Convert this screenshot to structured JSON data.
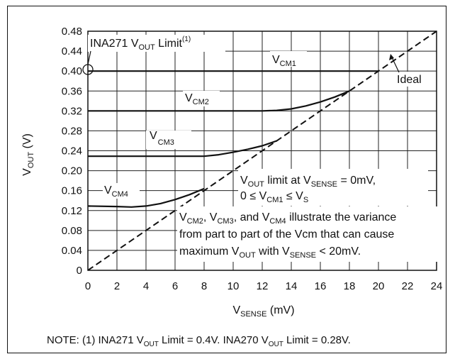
{
  "chart_data": {
    "type": "line",
    "xlabel": {
      "main": "V",
      "sub": "SENSE",
      "tail": " (mV)"
    },
    "ylabel": {
      "main": "V",
      "sub": "OUT",
      "tail": " (V)"
    },
    "xlim": [
      0,
      24
    ],
    "ylim": [
      0,
      0.48
    ],
    "x_ticks": [
      "0",
      "2",
      "4",
      "6",
      "8",
      "10",
      "12",
      "14",
      "16",
      "18",
      "20",
      "22",
      "24"
    ],
    "y_ticks": [
      "0",
      "0.04",
      "0.08",
      "0.12",
      "0.16",
      "0.20",
      "0.24",
      "0.28",
      "0.32",
      "0.36",
      "0.40",
      "0.44",
      "0.48"
    ],
    "grid": true,
    "series": [
      {
        "name": "VCM1",
        "style": "solid",
        "points": [
          [
            0,
            0.4
          ],
          [
            20,
            0.4
          ]
        ]
      },
      {
        "name": "VCM2",
        "style": "solid",
        "points": [
          [
            0,
            0.32
          ],
          [
            12,
            0.32
          ],
          [
            13,
            0.321
          ],
          [
            14,
            0.324
          ],
          [
            15,
            0.33
          ],
          [
            16,
            0.338
          ],
          [
            17,
            0.348
          ],
          [
            18,
            0.36
          ]
        ]
      },
      {
        "name": "VCM3",
        "style": "solid",
        "points": [
          [
            0,
            0.229
          ],
          [
            8,
            0.229
          ],
          [
            9,
            0.232
          ],
          [
            10,
            0.237
          ],
          [
            11,
            0.243
          ],
          [
            12,
            0.25
          ],
          [
            13,
            0.26
          ]
        ]
      },
      {
        "name": "VCM4",
        "style": "solid",
        "points": [
          [
            0,
            0.129
          ],
          [
            2,
            0.128
          ],
          [
            3,
            0.127
          ],
          [
            4,
            0.129
          ],
          [
            5,
            0.134
          ],
          [
            6,
            0.142
          ],
          [
            7,
            0.152
          ],
          [
            8,
            0.164
          ]
        ]
      },
      {
        "name": "Ideal",
        "style": "dashed",
        "points": [
          [
            0,
            0
          ],
          [
            24,
            0.48
          ]
        ]
      }
    ],
    "series_labels": {
      "vcm1": {
        "main": "V",
        "sub": "CM1"
      },
      "vcm2": {
        "main": "V",
        "sub": "CM2"
      },
      "vcm3": {
        "main": "V",
        "sub": "CM3"
      },
      "vcm4": {
        "main": "V",
        "sub": "CM4"
      },
      "ideal": "Ideal"
    },
    "annotations": {
      "limit_label": {
        "a": "INA271 V",
        "b": "OUT",
        "c": " Limit",
        "sup": "(1)"
      },
      "box1_line1": {
        "a": "V",
        "b": "OUT",
        "c": " limit at V",
        "d": "SENSE",
        "e": " = 0mV,"
      },
      "box1_line2": {
        "a": "0 ≤ V",
        "b": "CM1",
        "c": " ≤ V",
        "d": "S"
      },
      "box2_line1": {
        "a": "V",
        "b": "CM2",
        "c": ", V",
        "d": "CM3",
        "e": ", and V",
        "f": "CM4",
        "g": " illustrate the variance"
      },
      "box2_line2": "from part to part of the Vcm that can cause",
      "box2_line3": {
        "a": "maximum V",
        "b": "OUT",
        "c": " with V",
        "d": "SENSE",
        "e": " < 20mV."
      }
    },
    "note": {
      "a": "NOTE: (1) INA271 V",
      "b": "OUT",
      "c": " Limit = 0.4V. INA270 V",
      "d": "OUT",
      "e": " Limit = 0.28V."
    }
  }
}
